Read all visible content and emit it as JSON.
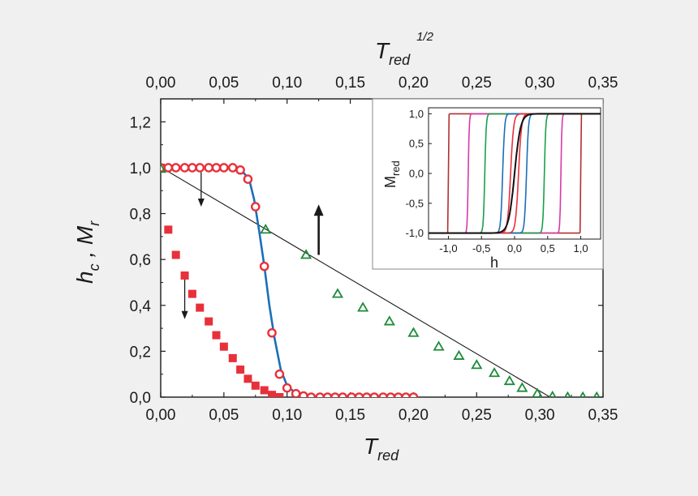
{
  "chart_data": [
    {
      "type": "scatter",
      "xlabel": "T",
      "xlabel_sub": "red",
      "ylabel": "h",
      "ylabel_sub_1": "c",
      "ylabel_sep": " , M",
      "ylabel_sub_2": "r",
      "top_xlabel": "T",
      "top_xlabel_sub": "red",
      "top_xlabel_sup": "1/2",
      "xlim": [
        0,
        0.35
      ],
      "ylim": [
        0,
        1.3
      ],
      "x_ticks": [
        "0,00",
        "0,05",
        "0,10",
        "0,15",
        "0,20",
        "0,25",
        "0,30",
        "0,35"
      ],
      "x_tick_values": [
        0,
        0.05,
        0.1,
        0.15,
        0.2,
        0.25,
        0.3,
        0.35
      ],
      "top_x_ticks": [
        "0,00",
        "0,05",
        "0,10",
        "0,15",
        "0,20",
        "0,25",
        "0,30",
        "0,35"
      ],
      "y_ticks": [
        "0,0",
        "0,2",
        "0,4",
        "0,6",
        "0,8",
        "1,0",
        "1,2"
      ],
      "y_tick_values": [
        0,
        0.2,
        0.4,
        0.6,
        0.8,
        1.0,
        1.2
      ],
      "grid": false,
      "series": [
        {
          "marker": "square-filled",
          "color": "#e8303a",
          "points": [
            [
              0,
              1.0
            ],
            [
              0.006,
              0.73
            ],
            [
              0.012,
              0.62
            ],
            [
              0.019,
              0.53
            ],
            [
              0.025,
              0.45
            ],
            [
              0.031,
              0.39
            ],
            [
              0.038,
              0.33
            ],
            [
              0.044,
              0.27
            ],
            [
              0.05,
              0.22
            ],
            [
              0.057,
              0.17
            ],
            [
              0.063,
              0.12
            ],
            [
              0.069,
              0.08
            ],
            [
              0.075,
              0.05
            ],
            [
              0.082,
              0.03
            ],
            [
              0.088,
              0.01
            ],
            [
              0.094,
              0.0
            ]
          ]
        },
        {
          "marker": "circle-open",
          "color": "#e8303a",
          "points": [
            [
              0,
              1.0
            ],
            [
              0.006,
              1.0
            ],
            [
              0.012,
              1.0
            ],
            [
              0.019,
              1.0
            ],
            [
              0.025,
              1.0
            ],
            [
              0.031,
              1.0
            ],
            [
              0.038,
              1.0
            ],
            [
              0.044,
              1.0
            ],
            [
              0.05,
              1.0
            ],
            [
              0.057,
              1.0
            ],
            [
              0.063,
              0.99
            ],
            [
              0.069,
              0.95
            ],
            [
              0.075,
              0.83
            ],
            [
              0.082,
              0.57
            ],
            [
              0.088,
              0.28
            ],
            [
              0.094,
              0.1
            ],
            [
              0.1,
              0.04
            ],
            [
              0.107,
              0.015
            ],
            [
              0.113,
              0.005
            ],
            [
              0.119,
              0.0
            ],
            [
              0.126,
              0.0
            ],
            [
              0.132,
              0.0
            ],
            [
              0.138,
              0.0
            ],
            [
              0.144,
              0.0
            ],
            [
              0.151,
              0.0
            ],
            [
              0.157,
              0.0
            ],
            [
              0.163,
              0.0
            ],
            [
              0.169,
              0.0
            ],
            [
              0.176,
              0.0
            ],
            [
              0.182,
              0.0
            ],
            [
              0.188,
              0.0
            ],
            [
              0.194,
              0.0
            ],
            [
              0.2,
              0.0
            ]
          ]
        },
        {
          "marker": "triangle-open",
          "color": "#1e8a3a",
          "points": [
            [
              0,
              0.995
            ],
            [
              0.083,
              0.73
            ],
            [
              0.115,
              0.62
            ],
            [
              0.14,
              0.45
            ],
            [
              0.16,
              0.39
            ],
            [
              0.181,
              0.33
            ],
            [
              0.2,
              0.28
            ],
            [
              0.22,
              0.22
            ],
            [
              0.236,
              0.18
            ],
            [
              0.25,
              0.14
            ],
            [
              0.264,
              0.105
            ],
            [
              0.276,
              0.07
            ],
            [
              0.286,
              0.04
            ],
            [
              0.298,
              0.015
            ],
            [
              0.31,
              0.003
            ],
            [
              0.322,
              0.0
            ],
            [
              0.334,
              0.0
            ],
            [
              0.345,
              0.0
            ]
          ]
        }
      ],
      "fit_curve_color": "#1a6fb8",
      "fit_curve": [
        [
          0,
          1.0
        ],
        [
          0.05,
          1.0
        ],
        [
          0.06,
          0.995
        ],
        [
          0.066,
          0.975
        ],
        [
          0.07,
          0.95
        ],
        [
          0.074,
          0.86
        ],
        [
          0.078,
          0.72
        ],
        [
          0.082,
          0.57
        ],
        [
          0.086,
          0.4
        ],
        [
          0.09,
          0.26
        ],
        [
          0.095,
          0.12
        ],
        [
          0.1,
          0.05
        ],
        [
          0.106,
          0.02
        ],
        [
          0.112,
          0.005
        ],
        [
          0.118,
          0.0
        ]
      ],
      "trend_line": [
        [
          -0.03,
          1.1
        ],
        [
          0.345,
          -0.12
        ]
      ],
      "arrows": [
        {
          "from": [
            0.032,
            0.98
          ],
          "to": [
            0.032,
            0.83
          ],
          "style": "thin"
        },
        {
          "from": [
            0.019,
            0.52
          ],
          "to": [
            0.019,
            0.34
          ],
          "style": "thin"
        },
        {
          "from": [
            0.125,
            0.62
          ],
          "to": [
            0.125,
            0.84
          ],
          "style": "bold"
        }
      ]
    },
    {
      "type": "line",
      "xlabel": "h",
      "ylabel": "M",
      "ylabel_sub": "red",
      "xlim": [
        -1.3,
        1.3
      ],
      "ylim": [
        -1.1,
        1.1
      ],
      "x_ticks": [
        "-1,0",
        "-0,5",
        "0,0",
        "0,5",
        "1,0"
      ],
      "x_tick_values": [
        -1.0,
        -0.5,
        0.0,
        0.5,
        1.0
      ],
      "y_ticks": [
        "-1,0",
        "-0,5",
        "0,0",
        "0,5",
        "1,0"
      ],
      "y_tick_values": [
        -1.0,
        -0.5,
        0.0,
        0.5,
        1.0
      ],
      "curves": [
        {
          "color": "#111111",
          "center": 0.0,
          "width": 0.09,
          "loop": false
        },
        {
          "color": "#e8303a",
          "center": 0.06,
          "width": 0.045,
          "loop": true
        },
        {
          "color": "#1a6fb8",
          "center": 0.18,
          "width": 0.03,
          "loop": true
        },
        {
          "color": "#1aa04a",
          "center": 0.45,
          "width": 0.022,
          "loop": true
        },
        {
          "color": "#d63aa8",
          "center": 0.7,
          "width": 0.015,
          "loop": true
        },
        {
          "color": "#b03030",
          "center": 1.0,
          "width": 0.004,
          "loop": true
        }
      ]
    }
  ]
}
